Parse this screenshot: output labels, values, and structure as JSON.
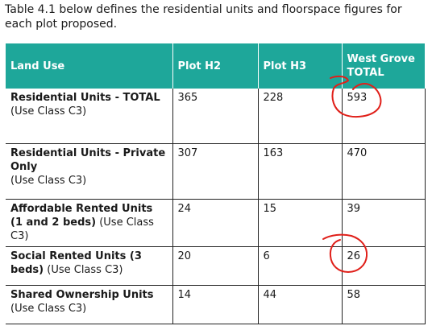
{
  "intro_text": "Table 4.1 below defines the residential units and floorspace figures for each plot proposed.",
  "table": {
    "headers": [
      "Land Use",
      "Plot H2",
      "Plot H3",
      "West Grove TOTAL"
    ],
    "rows": [
      {
        "land_use_bold": "Residential Units - TOTAL",
        "land_use_note": "(Use Class C3)",
        "plot_h2": "365",
        "plot_h3": "228",
        "total": "593"
      },
      {
        "land_use_bold": "Residential Units - Private Only",
        "land_use_note": "(Use Class C3)",
        "plot_h2": "307",
        "plot_h3": "163",
        "total": "470"
      },
      {
        "land_use_bold": "Affordable Rented Units (1 and 2 beds)",
        "land_use_note": "(Use Class C3)",
        "plot_h2": "24",
        "plot_h3": "15",
        "total": "39"
      },
      {
        "land_use_bold": "Social Rented Units (3 beds)",
        "land_use_note": "(Use Class C3)",
        "plot_h2": "20",
        "plot_h3": "6",
        "total": "26"
      },
      {
        "land_use_bold": "Shared Ownership Units",
        "land_use_note": "(Use Class C3)",
        "plot_h2": "14",
        "plot_h3": "44",
        "total": "58"
      }
    ]
  },
  "colors": {
    "header_background": "#1ea79a",
    "header_text": "#ffffff",
    "annotation": "#e0201a"
  }
}
